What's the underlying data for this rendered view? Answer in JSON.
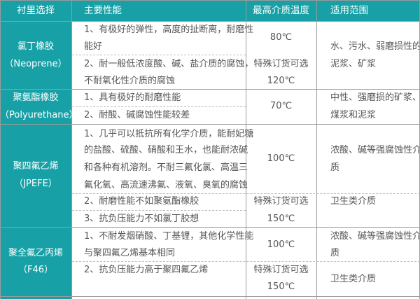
{
  "header": [
    "衬里选择",
    "主要性能",
    "最高介质温度",
    "适用范围"
  ],
  "rows": [
    {
      "material": [
        "氯丁橡胶",
        "（Neoprene）"
      ],
      "props": [
        "1、有极好的弹性，高度的扯断离，耐磨性",
        "能好",
        "2、耐一般低浓度酸、碱、盐介质的腐蚀，",
        "不耐氧化性介质的腐蚀"
      ],
      "temp": [
        "80℃",
        "特殊订货可选",
        "120℃"
      ],
      "usage": [
        "水、污水、弱磨损性的",
        "泥浆、矿浆"
      ]
    },
    {
      "material": [
        "聚氨酯橡胶",
        "（Polyurethane）"
      ],
      "props": [
        "1、具有极好的耐磨性能",
        "2、耐酸、碱腐蚀性能较差"
      ],
      "temp": [
        "70℃"
      ],
      "usage": [
        "中性、强磨损的矿浆、",
        "煤浆和泥浆"
      ]
    },
    {
      "material": [
        "聚四氟乙烯",
        "（JPEFE）"
      ],
      "props": [
        "1、几乎可以抵抗所有化学介质，能耐妃糖",
        "的盐酸、硫酸、硝酸和王水，也能耐浓碱",
        "和各种有机溶剂。不耐三氟化氯、高温三",
        "氟化氧、高流速沸氟、液氧、臭氧的腐蚀",
        "2、耐磨性能不如聚氨酯橡胶",
        "3、抗负压能力不如氯丁胶想"
      ],
      "temp": [
        "100℃",
        "特殊订货可选",
        "150℃"
      ],
      "usage": [
        "浓酸、碱等强腐蚀性介",
        "质",
        "卫生类介质"
      ]
    },
    {
      "material": [
        "聚全氟乙丙烯",
        "（F46）"
      ],
      "props": [
        "1、不耐发烟硝酸、丁基锂，其他化学性能",
        "与聚四氟乙烯基本相同",
        "2、抗负压能力高于聚四氟乙烯"
      ],
      "temp": [
        "100℃",
        "特殊订货可选",
        "150℃"
      ],
      "usage": [
        "浓酸、碱等强腐蚀性介",
        "质",
        "卫生类介质"
      ]
    }
  ],
  "colors": {
    "accent": "#17a1a7",
    "text": "#555555",
    "header_text": "#ffffff"
  }
}
